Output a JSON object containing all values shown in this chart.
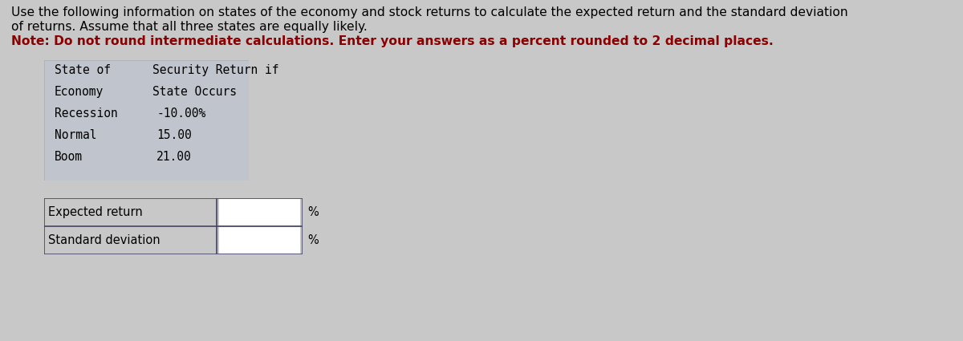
{
  "bg_color": "#c8c8c8",
  "title_line1": "Use the following information on states of the economy and stock returns to calculate the expected return and the standard deviation",
  "title_line2": "of returns. Assume that all three states are equally likely.",
  "note_line": "Note: Do not round intermediate calculations. Enter your answers as a percent rounded to 2 decimal places.",
  "table1_col1_header": [
    "State of",
    "Economy"
  ],
  "table1_col2_header": [
    "Security Return if",
    "State Occurs"
  ],
  "table1_rows": [
    [
      "Recession",
      "-10.00%"
    ],
    [
      "Normal",
      "15.00"
    ],
    [
      "Boom",
      "21.00"
    ]
  ],
  "table2_rows": [
    [
      "Expected return",
      "%"
    ],
    [
      "Standard deviation",
      "%"
    ]
  ],
  "table1_bg": "#c0c4cc",
  "table2_bg": "#c8c8c8",
  "input_box_color": "#ffffff",
  "border_color": "#444466",
  "title_fontsize": 11.2,
  "note_fontsize": 11.2,
  "table1_fontsize": 10.5,
  "table2_fontsize": 10.5,
  "table_font": "monospace",
  "title_font": "DejaVu Sans"
}
